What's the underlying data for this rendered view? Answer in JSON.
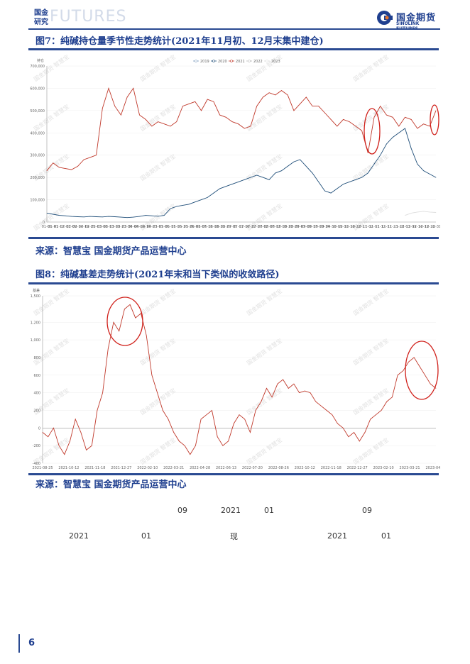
{
  "header": {
    "left_label": "国金研究",
    "watermark_word": "FUTURES",
    "logo_cn": "国金期货",
    "logo_en": "SINOLINK FUTURES"
  },
  "fig7": {
    "title": "图7：纯碱持仓量季节性走势统计(2021年11月初、12月末集中建仓)",
    "source": "来源：智慧宝 国金期货产品运营中心",
    "unit_label": "持仓",
    "legend": [
      "2019",
      "2020",
      "2021",
      "2022",
      "2023"
    ],
    "series_colors": {
      "2019": "#7f9fbf",
      "2020": "#1f4e79",
      "2021": "#c0392b",
      "2022": "#bbbbbb",
      "2023": "#dddddd"
    },
    "chart_data": {
      "type": "line",
      "ylim": [
        0,
        700000
      ],
      "ytick_labels": [
        "0",
        "100,000",
        "200,000",
        "300,000",
        "400,000",
        "500,000",
        "600,000",
        "700,000"
      ],
      "xtick_labels": [
        "01-01",
        "01-07",
        "01-12",
        "02-03",
        "02-09",
        "02-14",
        "02-19",
        "02-25",
        "03-03",
        "03-08",
        "03-13",
        "03-18",
        "03-23",
        "03-30",
        "04-06",
        "04-12",
        "04-18",
        "04-23",
        "05-01",
        "05-06",
        "05-11",
        "05-16",
        "05-21",
        "05-26",
        "06-01",
        "06-07",
        "06-12",
        "06-18",
        "06-23",
        "06-29",
        "07-05",
        "07-11",
        "07-16",
        "07-22",
        "07-27",
        "08-02",
        "08-07",
        "08-12",
        "08-18",
        "08-23",
        "08-28",
        "09-03",
        "09-08",
        "09-13",
        "09-19",
        "09-24",
        "09-30",
        "10-05",
        "10-11",
        "10-16",
        "10-22",
        "10-27",
        "11-02",
        "11-07",
        "11-12",
        "11-17",
        "11-23",
        "11-28",
        "12-03",
        "12-09",
        "12-14",
        "12-19",
        "12-26",
        "12-31"
      ],
      "series": [
        {
          "name": "2021",
          "values": [
            230000,
            265000,
            245000,
            240000,
            235000,
            250000,
            280000,
            290000,
            300000,
            510000,
            600000,
            520000,
            480000,
            560000,
            600000,
            480000,
            460000,
            430000,
            450000,
            440000,
            430000,
            450000,
            520000,
            530000,
            540000,
            500000,
            550000,
            540000,
            480000,
            470000,
            450000,
            440000,
            420000,
            430000,
            520000,
            560000,
            580000,
            570000,
            590000,
            570000,
            500000,
            530000,
            560000,
            520000,
            520000,
            490000,
            460000,
            430000,
            460000,
            450000,
            430000,
            410000,
            310000,
            470000,
            520000,
            480000,
            470000,
            430000,
            470000,
            460000,
            420000,
            440000,
            430000,
            500000
          ]
        },
        {
          "name": "2020",
          "values": [
            40000,
            35000,
            30000,
            28000,
            25000,
            24000,
            23000,
            25000,
            24000,
            23000,
            25000,
            24000,
            22000,
            20000,
            22000,
            25000,
            30000,
            28000,
            26000,
            30000,
            60000,
            70000,
            75000,
            80000,
            90000,
            100000,
            110000,
            130000,
            150000,
            160000,
            170000,
            180000,
            190000,
            200000,
            210000,
            200000,
            190000,
            220000,
            230000,
            250000,
            270000,
            280000,
            250000,
            220000,
            180000,
            140000,
            130000,
            150000,
            170000,
            180000,
            190000,
            200000,
            220000,
            260000,
            300000,
            350000,
            380000,
            400000,
            420000,
            330000,
            260000,
            230000,
            215000,
            200000
          ]
        },
        {
          "name": "2023",
          "values": [
            null,
            null,
            null,
            null,
            null,
            null,
            null,
            null,
            null,
            null,
            null,
            null,
            null,
            null,
            null,
            null,
            null,
            null,
            null,
            null,
            null,
            null,
            null,
            null,
            null,
            null,
            null,
            null,
            null,
            null,
            null,
            null,
            null,
            null,
            null,
            null,
            null,
            null,
            null,
            null,
            null,
            null,
            null,
            null,
            null,
            null,
            null,
            null,
            null,
            null,
            null,
            null,
            null,
            null,
            null,
            null,
            null,
            null,
            30000,
            40000,
            45000,
            48000,
            45000,
            43000
          ]
        }
      ]
    }
  },
  "fig8": {
    "title": "图8：纯碱基差走势统计(2021年末和当下类似的收敛路径)",
    "source": "来源：智慧宝 国金期货产品运营中心",
    "unit_label": "基差",
    "chart_data": {
      "type": "line",
      "ylim": [
        -400,
        1500
      ],
      "ytick_labels": [
        "-400",
        "-200",
        "0",
        "200",
        "400",
        "600",
        "800",
        "1,000",
        "1,200",
        "1,500"
      ],
      "xtick_labels": [
        "2021-08-25",
        "2021-10-12",
        "2021-11-18",
        "2021-12-27",
        "2022-02-10",
        "2022-03-21",
        "2022-04-28",
        "2022-06-13",
        "2022-07-20",
        "2022-08-26",
        "2022-10-12",
        "2022-11-18",
        "2022-12-27",
        "2023-02-10",
        "2023-03-21",
        "2023-04-28"
      ],
      "series": [
        {
          "name": "基差",
          "values": [
            -50,
            -100,
            0,
            -200,
            -300,
            -150,
            100,
            -50,
            -250,
            -200,
            200,
            400,
            900,
            1200,
            1100,
            1350,
            1400,
            1250,
            1300,
            1050,
            600,
            400,
            200,
            100,
            -50,
            -150,
            -200,
            -300,
            -200,
            100,
            150,
            200,
            -100,
            -200,
            -150,
            50,
            150,
            100,
            -50,
            200,
            300,
            450,
            350,
            500,
            550,
            450,
            500,
            400,
            420,
            400,
            300,
            250,
            200,
            150,
            50,
            0,
            -100,
            -50,
            -150,
            -50,
            100,
            150,
            200,
            300,
            350,
            600,
            650,
            750,
            800,
            700,
            600,
            500,
            450
          ]
        }
      ]
    }
  },
  "body_text": {
    "row1": [
      "09",
      "2021",
      "01",
      "09"
    ],
    "row2": [
      "2021",
      "01",
      "现",
      "2021",
      "01"
    ]
  },
  "watermark_text": "国金期货 智慧宝",
  "footer": {
    "page_number": "6"
  }
}
